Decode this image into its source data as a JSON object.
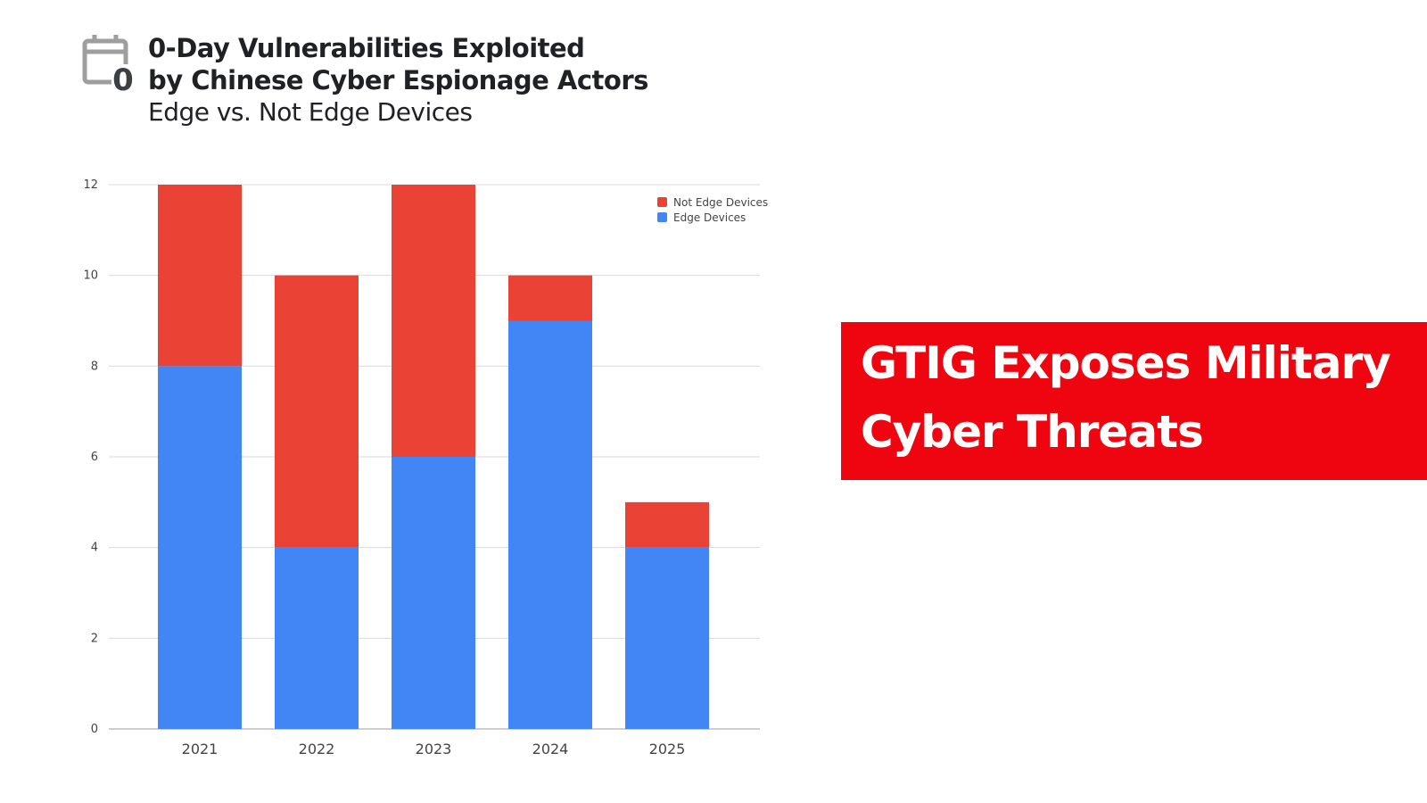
{
  "header": {
    "icon": "calendar-zero-icon",
    "icon_digit": "0",
    "title_line1": "0-Day Vulnerabilities Exploited",
    "title_line2": "by Chinese Cyber Espionage Actors",
    "subtitle": "Edge vs. Not Edge Devices"
  },
  "chart_data": {
    "type": "bar",
    "stacked": true,
    "categories": [
      "2021",
      "2022",
      "2023",
      "2024",
      "2025"
    ],
    "series": [
      {
        "name": "Edge Devices",
        "values": [
          8,
          4,
          6,
          9,
          4
        ],
        "color": "#4285f4"
      },
      {
        "name": "Not Edge Devices",
        "values": [
          4,
          6,
          6,
          1,
          1
        ],
        "color": "#ea4335"
      }
    ],
    "ylim": [
      0,
      12
    ],
    "yticks": [
      "0",
      "2",
      "4",
      "6",
      "8",
      "10",
      "12"
    ],
    "grid": true,
    "legend": "top-right",
    "legend_entries": [
      "Not Edge Devices",
      "Edge Devices"
    ]
  },
  "banner": {
    "line1": "GTIG Exposes Military",
    "line2": "Cyber Threats",
    "color": "#ee0510"
  }
}
